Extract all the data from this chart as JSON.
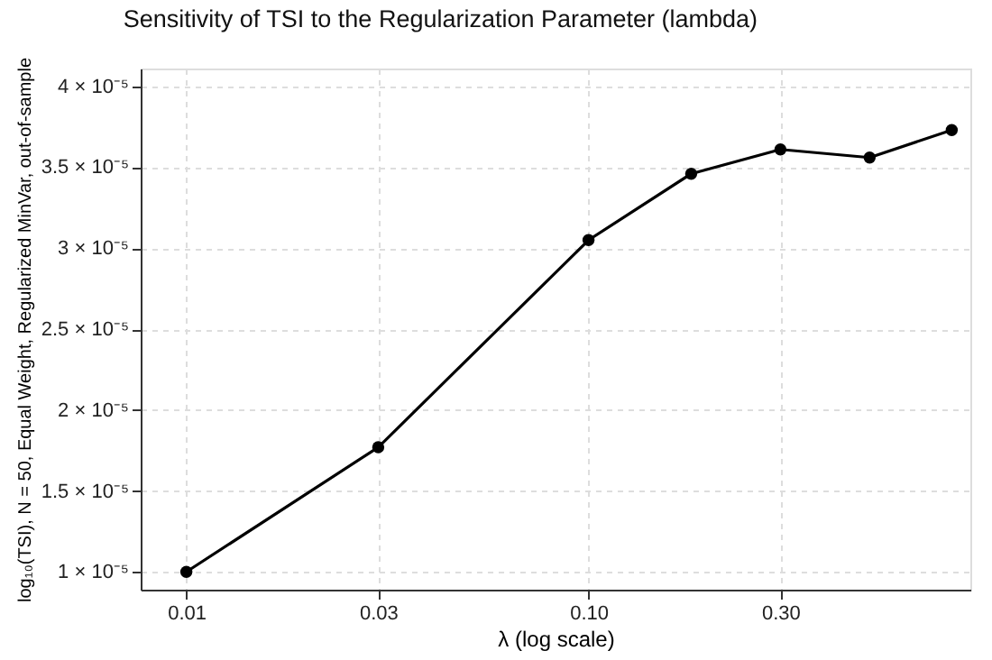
{
  "chart_data": {
    "type": "line",
    "title": "Sensitivity of TSI to the Regularization Parameter (lambda)",
    "xlabel": "λ (log scale)",
    "ylabel": "log₁₀(TSI), N = 50, Equal Weight, Regularized MinVar, out-of-sample",
    "x": [
      0.01,
      0.03,
      0.1,
      0.18,
      0.3,
      0.5,
      0.8
    ],
    "series": [
      {
        "color": "#000000",
        "values": [
          1e-05,
          1.77e-05,
          3.05e-05,
          3.46e-05,
          3.61e-05,
          3.56e-05,
          3.73e-05
        ]
      }
    ],
    "log": "x",
    "xlim": [
      0.0077,
      0.89
    ],
    "ylim": [
      8.9e-06,
      4.11e-05
    ],
    "xticks": [
      0.01,
      0.03,
      {
        "value": 0.1,
        "label": "0.10"
      },
      {
        "value": 0.3,
        "label": "0.30"
      }
    ],
    "yticks": [
      {
        "value": 1e-05,
        "label": "1 × 10⁻⁵"
      },
      {
        "value": 1.5e-05,
        "label": "1.5 × 10⁻⁵"
      },
      {
        "value": 2e-05,
        "label": "2 × 10⁻⁵"
      },
      {
        "value": 2.5e-05,
        "label": "2.5 × 10⁻⁵"
      },
      {
        "value": 3e-05,
        "label": "3 × 10⁻⁵"
      },
      {
        "value": 3.5e-05,
        "label": "3.5 × 10⁻⁵"
      },
      {
        "value": 4e-05,
        "label": "4 × 10⁻⁵"
      }
    ],
    "grid": true,
    "marker": "circle",
    "line_style": "solid"
  }
}
